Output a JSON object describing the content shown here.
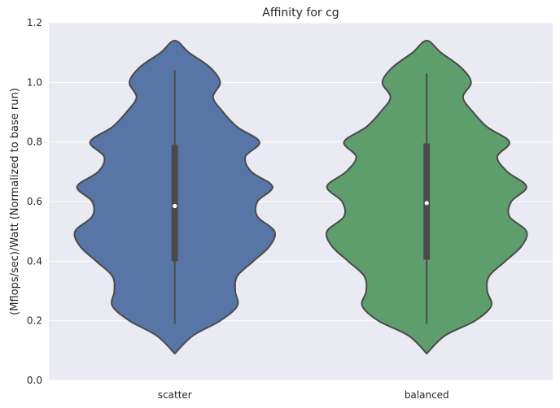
{
  "chart_data": {
    "type": "violin",
    "title": "Affinity for cg",
    "xlabel": "",
    "ylabel": "(Mflops/sec)/Watt (Normalized to base run)",
    "ylim": [
      0.0,
      1.2
    ],
    "yticks": [
      0.0,
      0.2,
      0.4,
      0.6,
      0.8,
      1.0,
      1.2
    ],
    "ytick_labels": [
      "0.0",
      "0.2",
      "0.4",
      "0.6",
      "0.8",
      "1.0",
      "1.2"
    ],
    "grid": true,
    "categories": [
      "scatter",
      "balanced"
    ],
    "colors": [
      "#5875a7",
      "#5e9e6d"
    ],
    "background_color": "#eaeaf2",
    "edge_color": "#4a4a4a",
    "series": [
      {
        "category": "scatter",
        "min": 0.19,
        "q1": 0.4,
        "median": 0.585,
        "q3": 0.79,
        "max": 1.04,
        "range": [
          0.09,
          1.14
        ],
        "width_profile": [
          [
            0.09,
            0.0
          ],
          [
            0.15,
            0.18
          ],
          [
            0.2,
            0.45
          ],
          [
            0.25,
            0.62
          ],
          [
            0.3,
            0.6
          ],
          [
            0.35,
            0.62
          ],
          [
            0.4,
            0.78
          ],
          [
            0.45,
            0.94
          ],
          [
            0.5,
            0.99
          ],
          [
            0.55,
            0.82
          ],
          [
            0.6,
            0.82
          ],
          [
            0.65,
            0.97
          ],
          [
            0.7,
            0.76
          ],
          [
            0.75,
            0.7
          ],
          [
            0.8,
            0.84
          ],
          [
            0.85,
            0.62
          ],
          [
            0.9,
            0.48
          ],
          [
            0.95,
            0.38
          ],
          [
            1.0,
            0.45
          ],
          [
            1.05,
            0.35
          ],
          [
            1.1,
            0.14
          ],
          [
            1.14,
            0.0
          ]
        ]
      },
      {
        "category": "balanced",
        "min": 0.19,
        "q1": 0.405,
        "median": 0.595,
        "q3": 0.795,
        "max": 1.03,
        "range": [
          0.09,
          1.14
        ],
        "width_profile": [
          [
            0.09,
            0.0
          ],
          [
            0.15,
            0.18
          ],
          [
            0.2,
            0.48
          ],
          [
            0.25,
            0.64
          ],
          [
            0.3,
            0.6
          ],
          [
            0.35,
            0.62
          ],
          [
            0.4,
            0.78
          ],
          [
            0.45,
            0.94
          ],
          [
            0.5,
            0.99
          ],
          [
            0.55,
            0.82
          ],
          [
            0.6,
            0.84
          ],
          [
            0.65,
            0.99
          ],
          [
            0.7,
            0.8
          ],
          [
            0.75,
            0.7
          ],
          [
            0.8,
            0.82
          ],
          [
            0.85,
            0.6
          ],
          [
            0.9,
            0.46
          ],
          [
            0.95,
            0.36
          ],
          [
            1.0,
            0.44
          ],
          [
            1.05,
            0.34
          ],
          [
            1.1,
            0.14
          ],
          [
            1.14,
            0.0
          ]
        ]
      }
    ]
  }
}
